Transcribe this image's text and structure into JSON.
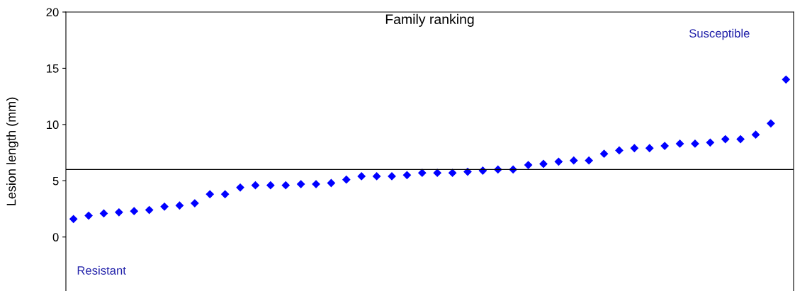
{
  "chart_data": {
    "type": "scatter",
    "title": "Family ranking",
    "ylabel": "Lesion length (mm)",
    "categories": [
      null,
      null,
      null,
      null,
      null,
      null,
      null,
      null,
      null,
      null,
      null,
      null,
      null,
      null,
      null,
      null,
      null,
      null,
      null,
      null,
      null,
      null,
      null,
      null,
      null,
      null,
      null,
      null,
      null,
      null,
      null,
      null,
      null,
      null,
      null,
      null,
      null,
      null,
      null,
      null,
      null,
      null,
      null,
      null,
      null,
      null,
      null,
      null
    ],
    "series": [
      {
        "color": "#0000ff",
        "values": [
          1.6,
          1.9,
          2.1,
          2.2,
          2.3,
          2.4,
          2.7,
          2.8,
          3.0,
          3.8,
          3.8,
          4.4,
          4.6,
          4.6,
          4.6,
          4.7,
          4.7,
          4.8,
          5.1,
          5.4,
          5.4,
          5.4,
          5.5,
          5.7,
          5.7,
          5.7,
          5.8,
          5.9,
          6.0,
          6.0,
          6.4,
          6.5,
          6.7,
          6.8,
          6.8,
          7.4,
          7.7,
          7.9,
          7.9,
          8.1,
          8.3,
          8.3,
          8.4,
          8.7,
          8.7,
          9.1,
          10.1,
          14.0
        ]
      }
    ],
    "marker": "diamond",
    "ylim": [
      -4.8,
      20
    ],
    "yticks": [
      0,
      5,
      10,
      15,
      20
    ],
    "ref_lines": [
      {
        "axis": "y",
        "value": 6,
        "color": "#000000"
      }
    ],
    "annotations": [
      "Susceptible",
      "Resistant"
    ],
    "grid": false,
    "legend": false
  }
}
